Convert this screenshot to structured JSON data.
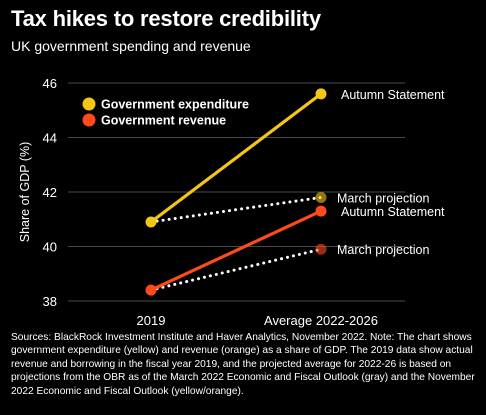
{
  "title": "Tax hikes to restore credibility",
  "subtitle": "UK government spending and revenue",
  "source": "Sources: BlackRock Investment Institute and Haver Analytics, November 2022. Note: The chart shows government expenditure (yellow) and revenue (orange) as a share of GDP. The 2019 data show actual revenue and borrowing in the fiscal year 2019, and the projected average for 2022-26 is based on projections from the OBR as of the March 2022 Economic and Fiscal Outlook (gray) and the November 2022 Economic and Fiscal Outlook (yellow/orange).",
  "colors": {
    "background": "#000000",
    "expenditure": "#f5c518",
    "revenue": "#ff4a1c",
    "projection": "#ffffff",
    "grid": "#4a4a4a"
  },
  "chart_data": {
    "type": "line",
    "categories": [
      "2019",
      "Average 2022-2026"
    ],
    "ylabel": "Share of GDP (%)",
    "ylim": [
      38,
      46
    ],
    "yticks": [
      38,
      40,
      42,
      44,
      46
    ],
    "grid": true,
    "legend_position": "top-left",
    "series": [
      {
        "name": "Government expenditure",
        "color": "#f5c518",
        "style": "solid",
        "values": [
          40.9,
          45.6
        ],
        "end_label": "Autumn Statement"
      },
      {
        "name": "Government revenue",
        "color": "#ff4a1c",
        "style": "solid",
        "values": [
          38.4,
          41.3
        ],
        "end_label": "Autumn Statement"
      },
      {
        "color": "#f5c518",
        "style": "dotted",
        "values": [
          40.9,
          41.8
        ],
        "end_label": "March projection"
      },
      {
        "color": "#ff4a1c",
        "style": "dotted",
        "values": [
          38.4,
          39.9
        ],
        "end_label": "March projection"
      }
    ]
  }
}
